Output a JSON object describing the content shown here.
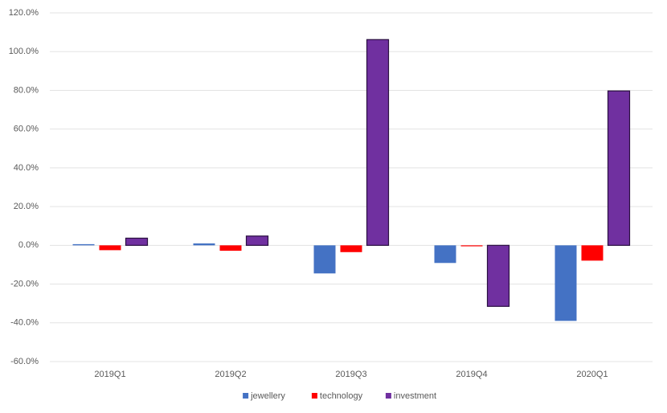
{
  "chart_data": {
    "type": "bar",
    "categories": [
      "2019Q1",
      "2019Q2",
      "2019Q3",
      "2019Q4",
      "2020Q1"
    ],
    "series": [
      {
        "name": "jewellery",
        "color": "#4472c4",
        "values": [
          0.6,
          1.0,
          -14.5,
          -9.1,
          -39.0
        ]
      },
      {
        "name": "technology",
        "color": "#ff0000",
        "values": [
          -2.5,
          -2.8,
          -3.5,
          -0.5,
          -7.9
        ]
      },
      {
        "name": "investment",
        "color": "#7030a0",
        "values": [
          3.7,
          4.8,
          106.2,
          -31.5,
          79.7
        ]
      }
    ],
    "ylim": [
      -60,
      120
    ],
    "yticks": [
      {
        "value": -60,
        "label": "-60.0%"
      },
      {
        "value": -40,
        "label": "-40.0%"
      },
      {
        "value": -20,
        "label": "-20.0%"
      },
      {
        "value": 0,
        "label": "0.0%"
      },
      {
        "value": 20,
        "label": "20.0%"
      },
      {
        "value": 40,
        "label": "40.0%"
      },
      {
        "value": 60,
        "label": "60.0%"
      },
      {
        "value": 80,
        "label": "80.0%"
      },
      {
        "value": 100,
        "label": "100.0%"
      },
      {
        "value": 120,
        "label": "120.0%"
      }
    ],
    "grid": true,
    "legend": "bottom"
  }
}
